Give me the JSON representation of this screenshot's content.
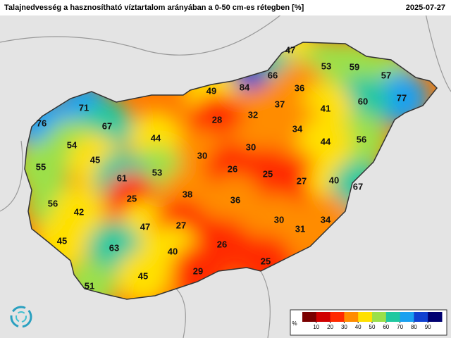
{
  "header": {
    "title": "Talajnedvesség a hasznosítható víztartalom arányában a 0-50 cm-es rétegben [%]",
    "date": "2025-07-27"
  },
  "points": [
    47,
    53,
    59,
    66,
    57,
    84,
    49,
    36,
    77,
    71,
    37,
    60,
    41,
    32,
    76,
    67,
    28,
    34,
    44,
    54,
    30,
    56,
    44,
    45,
    30,
    26,
    55,
    53,
    61,
    25,
    27,
    40,
    67,
    38,
    25,
    36,
    56,
    42,
    30,
    34,
    47,
    27,
    31,
    45,
    26,
    63,
    40,
    25,
    29,
    45,
    51
  ],
  "legend": {
    "unit": "%",
    "lim": [
      0,
      100
    ],
    "ticks": [
      10,
      20,
      30,
      40,
      50,
      60,
      70,
      80,
      90
    ],
    "colors": [
      "#7a0000",
      "#d00000",
      "#ff2a00",
      "#ff8c00",
      "#ffe000",
      "#9be04a",
      "#20c8a0",
      "#1aa0f0",
      "#1040d0",
      "#000070"
    ]
  }
}
